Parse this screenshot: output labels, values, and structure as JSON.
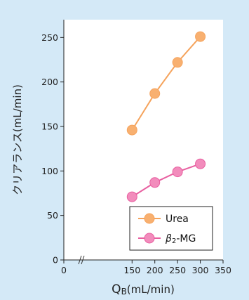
{
  "chart_data": {
    "type": "line",
    "xlabel_main": "Q",
    "xlabel_sub": "B",
    "xlabel_unit": "(mL/min)",
    "ylabel": "クリアランス(mL/min)",
    "xlim": [
      0,
      350
    ],
    "ylim": [
      0,
      270
    ],
    "x_ticks": [
      0,
      150,
      200,
      250,
      300,
      350
    ],
    "y_ticks": [
      0,
      50,
      100,
      150,
      200,
      250
    ],
    "x_axis_break": true,
    "grid": false,
    "legend_position": "bottom-right",
    "series": [
      {
        "name": "Urea",
        "color": "#f5a35c",
        "marker_color": "#f8b070",
        "x": [
          150,
          200,
          250,
          300
        ],
        "y": [
          146,
          187,
          222,
          251
        ]
      },
      {
        "name": "β2-MG",
        "name_main": "β",
        "name_sub": "2",
        "name_rest": "-MG",
        "color": "#e85fa0",
        "marker_color": "#f28cbc",
        "x": [
          150,
          200,
          250,
          300
        ],
        "y": [
          71,
          87,
          99,
          108
        ]
      }
    ]
  }
}
